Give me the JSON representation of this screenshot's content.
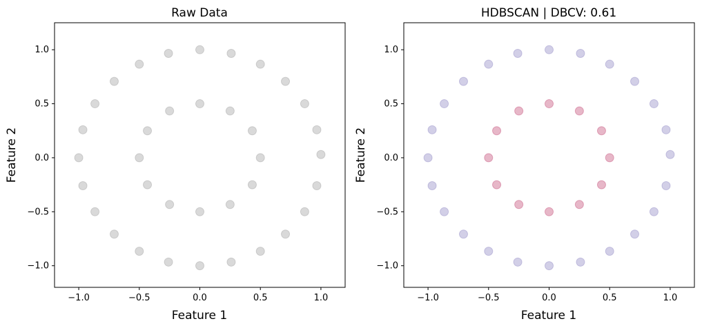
{
  "chart_data": [
    {
      "type": "scatter",
      "title": "Raw Data",
      "xlabel": "Feature 1",
      "ylabel": "Feature 2",
      "xlim": [
        -1.2,
        1.2
      ],
      "ylim": [
        -1.2,
        1.25
      ],
      "xticks": [
        -1.0,
        -0.5,
        0.0,
        0.5,
        1.0
      ],
      "yticks": [
        -1.0,
        -0.5,
        0.0,
        0.5,
        1.0
      ],
      "xtick_labels": [
        "−1.0",
        "−0.5",
        "0.0",
        "0.5",
        "1.0"
      ],
      "ytick_labels": [
        "−1.0",
        "−0.5",
        "0.0",
        "0.5",
        "1.0"
      ],
      "grid": false,
      "marker_alpha": 0.3,
      "series": [
        {
          "color": "#808080",
          "values": [
            [
              1.0,
              0.03
            ],
            [
              0.966,
              0.259
            ],
            [
              0.866,
              0.5
            ],
            [
              0.707,
              0.707
            ],
            [
              0.5,
              0.866
            ],
            [
              0.259,
              0.966
            ],
            [
              0.0,
              1.0
            ],
            [
              -0.259,
              0.966
            ],
            [
              -0.5,
              0.866
            ],
            [
              -0.707,
              0.707
            ],
            [
              -0.866,
              0.5
            ],
            [
              -0.966,
              0.259
            ],
            [
              -1.0,
              0.0
            ],
            [
              -0.966,
              -0.259
            ],
            [
              -0.866,
              -0.5
            ],
            [
              -0.707,
              -0.707
            ],
            [
              -0.5,
              -0.866
            ],
            [
              -0.259,
              -0.966
            ],
            [
              0.0,
              -1.0
            ],
            [
              0.259,
              -0.966
            ],
            [
              0.5,
              -0.866
            ],
            [
              0.707,
              -0.707
            ],
            [
              0.866,
              -0.5
            ],
            [
              0.966,
              -0.259
            ],
            [
              0.5,
              0.0
            ],
            [
              0.433,
              0.25
            ],
            [
              0.25,
              0.433
            ],
            [
              0.0,
              0.5
            ],
            [
              -0.25,
              0.433
            ],
            [
              -0.433,
              0.25
            ],
            [
              -0.5,
              0.0
            ],
            [
              -0.433,
              -0.25
            ],
            [
              -0.25,
              -0.433
            ],
            [
              0.0,
              -0.5
            ],
            [
              0.25,
              -0.433
            ],
            [
              0.433,
              -0.25
            ]
          ]
        }
      ]
    },
    {
      "type": "scatter",
      "title": "HDBSCAN | DBCV: 0.61",
      "xlabel": "Feature 1",
      "ylabel": "Feature 2",
      "xlim": [
        -1.2,
        1.2
      ],
      "ylim": [
        -1.2,
        1.25
      ],
      "xticks": [
        -1.0,
        -0.5,
        0.0,
        0.5,
        1.0
      ],
      "yticks": [
        -1.0,
        -0.5,
        0.0,
        0.5,
        1.0
      ],
      "xtick_labels": [
        "−1.0",
        "−0.5",
        "0.0",
        "0.5",
        "1.0"
      ],
      "ytick_labels": [
        "−1.0",
        "−0.5",
        "0.0",
        "0.5",
        "1.0"
      ],
      "grid": false,
      "marker_alpha": 0.3,
      "series": [
        {
          "color": "#6a5fb0",
          "values": [
            [
              1.0,
              0.03
            ],
            [
              0.966,
              0.259
            ],
            [
              0.866,
              0.5
            ],
            [
              0.707,
              0.707
            ],
            [
              0.5,
              0.866
            ],
            [
              0.259,
              0.966
            ],
            [
              0.0,
              1.0
            ],
            [
              -0.259,
              0.966
            ],
            [
              -0.5,
              0.866
            ],
            [
              -0.707,
              0.707
            ],
            [
              -0.866,
              0.5
            ],
            [
              -0.966,
              0.259
            ],
            [
              -1.0,
              0.0
            ],
            [
              -0.966,
              -0.259
            ],
            [
              -0.866,
              -0.5
            ],
            [
              -0.707,
              -0.707
            ],
            [
              -0.5,
              -0.866
            ],
            [
              -0.259,
              -0.966
            ],
            [
              0.0,
              -1.0
            ],
            [
              0.259,
              -0.966
            ],
            [
              0.5,
              -0.866
            ],
            [
              0.707,
              -0.707
            ],
            [
              0.866,
              -0.5
            ],
            [
              0.966,
              -0.259
            ]
          ]
        },
        {
          "color": "#b0104a",
          "values": [
            [
              0.5,
              0.0
            ],
            [
              0.433,
              0.25
            ],
            [
              0.25,
              0.433
            ],
            [
              0.0,
              0.5
            ],
            [
              -0.25,
              0.433
            ],
            [
              -0.433,
              0.25
            ],
            [
              -0.5,
              0.0
            ],
            [
              -0.433,
              -0.25
            ],
            [
              -0.25,
              -0.433
            ],
            [
              0.0,
              -0.5
            ],
            [
              0.25,
              -0.433
            ],
            [
              0.433,
              -0.25
            ]
          ]
        }
      ]
    }
  ]
}
